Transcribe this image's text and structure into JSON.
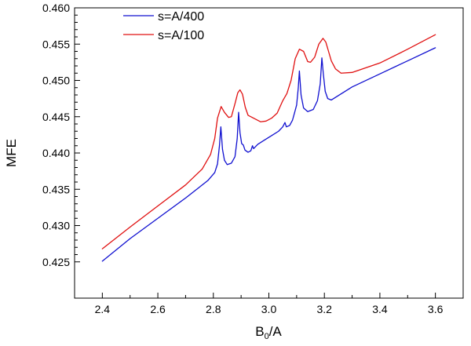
{
  "chart_data": {
    "type": "line",
    "title": "",
    "xlabel": {
      "main": "B",
      "sub": "0",
      "rest": "/A"
    },
    "ylabel": "MFE",
    "xlim": [
      2.3,
      3.7
    ],
    "ylim": [
      0.42,
      0.46
    ],
    "xticks": [
      "2.4",
      "2.6",
      "2.8",
      "3.0",
      "3.2",
      "3.4",
      "3.6"
    ],
    "yticks": [
      "0.425",
      "0.430",
      "0.435",
      "0.440",
      "0.445",
      "0.450",
      "0.455",
      "0.460"
    ],
    "grid": false,
    "legend_position": "top-left",
    "series": [
      {
        "name": "s=A/400",
        "color": "#1010d0",
        "points": [
          [
            2.4,
            0.4251
          ],
          [
            2.5,
            0.4282
          ],
          [
            2.6,
            0.431
          ],
          [
            2.7,
            0.4338
          ],
          [
            2.78,
            0.4362
          ],
          [
            2.805,
            0.4373
          ],
          [
            2.815,
            0.4385
          ],
          [
            2.822,
            0.441
          ],
          [
            2.827,
            0.4436
          ],
          [
            2.833,
            0.4405
          ],
          [
            2.84,
            0.439
          ],
          [
            2.85,
            0.4384
          ],
          [
            2.865,
            0.4386
          ],
          [
            2.878,
            0.4395
          ],
          [
            2.886,
            0.442
          ],
          [
            2.891,
            0.4456
          ],
          [
            2.896,
            0.4428
          ],
          [
            2.902,
            0.4413
          ],
          [
            2.908,
            0.4411
          ],
          [
            2.914,
            0.4404
          ],
          [
            2.925,
            0.4401
          ],
          [
            2.935,
            0.4403
          ],
          [
            2.941,
            0.441
          ],
          [
            2.945,
            0.4406
          ],
          [
            2.96,
            0.4412
          ],
          [
            2.985,
            0.4418
          ],
          [
            3.01,
            0.4424
          ],
          [
            3.035,
            0.443
          ],
          [
            3.05,
            0.4436
          ],
          [
            3.058,
            0.4442
          ],
          [
            3.063,
            0.4436
          ],
          [
            3.075,
            0.4438
          ],
          [
            3.085,
            0.4445
          ],
          [
            3.093,
            0.4456
          ],
          [
            3.1,
            0.4466
          ],
          [
            3.106,
            0.449
          ],
          [
            3.11,
            0.4513
          ],
          [
            3.116,
            0.448
          ],
          [
            3.125,
            0.4462
          ],
          [
            3.14,
            0.4457
          ],
          [
            3.16,
            0.446
          ],
          [
            3.175,
            0.4472
          ],
          [
            3.185,
            0.4495
          ],
          [
            3.191,
            0.4531
          ],
          [
            3.196,
            0.451
          ],
          [
            3.203,
            0.4485
          ],
          [
            3.212,
            0.4475
          ],
          [
            3.225,
            0.4473
          ],
          [
            3.3,
            0.4491
          ],
          [
            3.4,
            0.4509
          ],
          [
            3.5,
            0.4527
          ],
          [
            3.6,
            0.4545
          ]
        ]
      },
      {
        "name": "s=A/100",
        "color": "#e01010",
        "points": [
          [
            2.4,
            0.4268
          ],
          [
            2.5,
            0.4298
          ],
          [
            2.6,
            0.4327
          ],
          [
            2.7,
            0.4356
          ],
          [
            2.76,
            0.4378
          ],
          [
            2.79,
            0.4398
          ],
          [
            2.805,
            0.442
          ],
          [
            2.815,
            0.4448
          ],
          [
            2.828,
            0.4464
          ],
          [
            2.84,
            0.4456
          ],
          [
            2.855,
            0.4449
          ],
          [
            2.865,
            0.445
          ],
          [
            2.878,
            0.4468
          ],
          [
            2.888,
            0.4483
          ],
          [
            2.896,
            0.4487
          ],
          [
            2.905,
            0.4481
          ],
          [
            2.915,
            0.4463
          ],
          [
            2.925,
            0.4452
          ],
          [
            2.94,
            0.4449
          ],
          [
            2.955,
            0.4446
          ],
          [
            2.97,
            0.4443
          ],
          [
            2.99,
            0.4444
          ],
          [
            3.01,
            0.4448
          ],
          [
            3.03,
            0.4455
          ],
          [
            3.05,
            0.4472
          ],
          [
            3.065,
            0.4482
          ],
          [
            3.08,
            0.45
          ],
          [
            3.095,
            0.453
          ],
          [
            3.11,
            0.4543
          ],
          [
            3.125,
            0.454
          ],
          [
            3.14,
            0.4526
          ],
          [
            3.15,
            0.4525
          ],
          [
            3.165,
            0.4532
          ],
          [
            3.18,
            0.455
          ],
          [
            3.195,
            0.4558
          ],
          [
            3.205,
            0.4553
          ],
          [
            3.215,
            0.454
          ],
          [
            3.225,
            0.4527
          ],
          [
            3.24,
            0.4516
          ],
          [
            3.26,
            0.451
          ],
          [
            3.3,
            0.4511
          ],
          [
            3.4,
            0.4524
          ],
          [
            3.5,
            0.4543
          ],
          [
            3.6,
            0.4563
          ]
        ]
      }
    ]
  }
}
